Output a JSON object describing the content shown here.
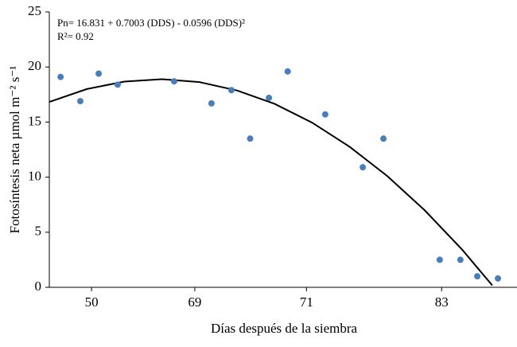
{
  "chart_data": {
    "type": "scatter",
    "annotations": [
      "Pn= 16.831 + 0.7003 (DDS) - 0.0596 (DDS)²",
      "R²= 0.92"
    ],
    "x_label": "Días después de la siembra",
    "y_label": "Fotosíntesis neta µmol m⁻² s⁻¹",
    "xlim": [
      0,
      25
    ],
    "xticks": [
      {
        "value": 2.25,
        "label": "50"
      },
      {
        "value": 7.75,
        "label": "69"
      },
      {
        "value": 13.7,
        "label": "71"
      },
      {
        "value": 20.9,
        "label": "83"
      }
    ],
    "ylim": [
      0,
      25
    ],
    "yticks": [
      0,
      5,
      10,
      15,
      20,
      25
    ],
    "series": [
      {
        "color": "#4a7ebb",
        "x": [
          0.6,
          1.65,
          2.63,
          3.64,
          6.65,
          8.64,
          9.7,
          10.7,
          11.7,
          12.7,
          14.7,
          16.7,
          17.8,
          20.8,
          21.9,
          22.8,
          23.9
        ],
        "values": [
          19.1,
          16.9,
          19.4,
          18.4,
          18.7,
          16.7,
          17.9,
          13.5,
          17.2,
          19.6,
          15.7,
          10.9,
          13.5,
          2.5,
          2.5,
          1.0,
          0.8
        ]
      }
    ],
    "trend": {
      "color": "#000000",
      "x": [
        0,
        2,
        4,
        6,
        8,
        10,
        12,
        14,
        16,
        18,
        20,
        22,
        23.6
      ],
      "values": [
        16.83,
        18.0,
        18.68,
        18.89,
        18.63,
        17.87,
        16.66,
        14.95,
        12.76,
        10.11,
        6.99,
        3.41,
        0.17
      ]
    }
  }
}
